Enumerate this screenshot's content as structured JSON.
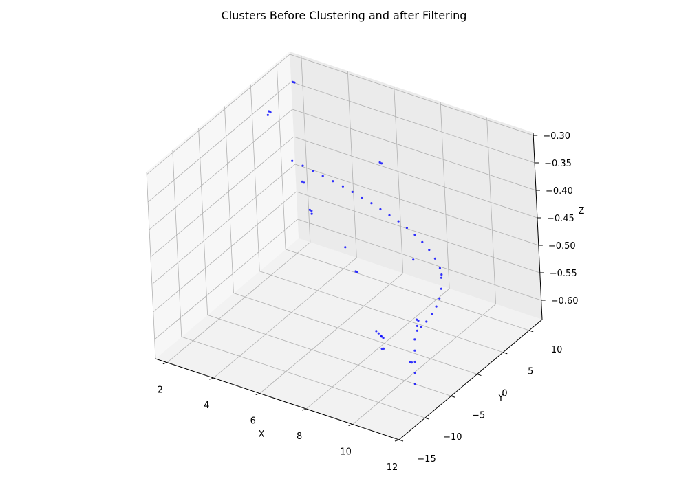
{
  "chart_data": {
    "type": "scatter3d",
    "title": "Clusters Before Clustering and after Filtering",
    "xlabel": "X",
    "ylabel": "Y",
    "zlabel": "Z",
    "xlim": [
      1.5,
      12
    ],
    "ylim": [
      -15,
      12.5
    ],
    "zlim": [
      -0.635,
      -0.295
    ],
    "x_ticks": [
      "2",
      "4",
      "6",
      "8",
      "10",
      "12"
    ],
    "y_ticks": [
      "−15",
      "−10",
      "−5",
      "0",
      "5",
      "10"
    ],
    "z_ticks": [
      "−0.30",
      "−0.35",
      "−0.40",
      "−0.45",
      "−0.50",
      "−0.55",
      "−0.60"
    ],
    "grid": true,
    "series": [
      {
        "color": "#0000ff",
        "points": [
          [
            2.0,
            6.0,
            -0.345
          ],
          [
            2.05,
            6.1,
            -0.347
          ],
          [
            2.0,
            5.8,
            -0.35
          ],
          [
            2.4,
            9.0,
            -0.31
          ],
          [
            2.45,
            9.1,
            -0.311
          ],
          [
            5.1,
            13.0,
            -0.45
          ],
          [
            5.15,
            13.1,
            -0.452
          ],
          [
            3.2,
            6.5,
            -0.46
          ],
          [
            3.25,
            6.6,
            -0.462
          ],
          [
            3.0,
            8.5,
            -0.53
          ],
          [
            3.05,
            8.6,
            -0.532
          ],
          [
            3.1,
            8.4,
            -0.535
          ],
          [
            5.0,
            8.0,
            -0.61
          ],
          [
            5.05,
            8.1,
            -0.612
          ],
          [
            7.5,
            8.2,
            -0.555
          ],
          [
            4.0,
            10.5,
            -0.6
          ],
          [
            7.2,
            2.0,
            -0.64
          ],
          [
            7.25,
            2.2,
            -0.645
          ],
          [
            7.3,
            2.4,
            -0.65
          ],
          [
            7.35,
            2.6,
            -0.655
          ],
          [
            7.4,
            2.1,
            -0.648
          ],
          [
            7.6,
            1.2,
            -0.66
          ],
          [
            7.65,
            1.3,
            -0.66
          ],
          [
            9.8,
            -3.0,
            -0.62
          ],
          [
            9.85,
            -2.9,
            -0.621
          ],
          [
            9.7,
            -1.0,
            -0.56
          ],
          [
            9.75,
            -0.9,
            -0.562
          ],
          [
            8.4,
            9.5,
            -0.58
          ],
          [
            1.5,
            12.0,
            -0.49
          ],
          [
            2.0,
            11.8,
            -0.49
          ],
          [
            2.5,
            11.5,
            -0.49
          ],
          [
            3.0,
            11.2,
            -0.49
          ],
          [
            3.5,
            10.9,
            -0.49
          ],
          [
            4.0,
            10.6,
            -0.49
          ],
          [
            4.5,
            10.2,
            -0.49
          ],
          [
            5.0,
            9.8,
            -0.49
          ],
          [
            5.5,
            9.4,
            -0.49
          ],
          [
            6.0,
            8.9,
            -0.49
          ],
          [
            6.5,
            8.4,
            -0.49
          ],
          [
            7.0,
            7.9,
            -0.49
          ],
          [
            7.5,
            7.3,
            -0.49
          ],
          [
            8.0,
            6.6,
            -0.49
          ],
          [
            8.5,
            5.8,
            -0.49
          ],
          [
            9.0,
            4.9,
            -0.49
          ],
          [
            9.5,
            3.8,
            -0.49
          ],
          [
            10.0,
            2.5,
            -0.49
          ],
          [
            10.4,
            1.0,
            -0.49
          ],
          [
            10.8,
            -0.8,
            -0.49
          ],
          [
            11.1,
            -2.5,
            -0.49
          ],
          [
            11.3,
            -4.0,
            -0.49
          ],
          [
            11.45,
            -5.5,
            -0.49
          ],
          [
            11.55,
            -7.0,
            -0.49
          ],
          [
            11.6,
            -8.2,
            -0.49
          ],
          [
            11.6,
            -9.0,
            -0.49
          ],
          [
            11.0,
            -7.0,
            -0.53
          ],
          [
            11.1,
            -7.5,
            -0.545
          ],
          [
            11.2,
            -8.0,
            -0.56
          ],
          [
            11.3,
            -8.5,
            -0.575
          ],
          [
            11.4,
            -9.0,
            -0.59
          ],
          [
            10.9,
            -6.0,
            -0.515
          ]
        ]
      }
    ]
  }
}
